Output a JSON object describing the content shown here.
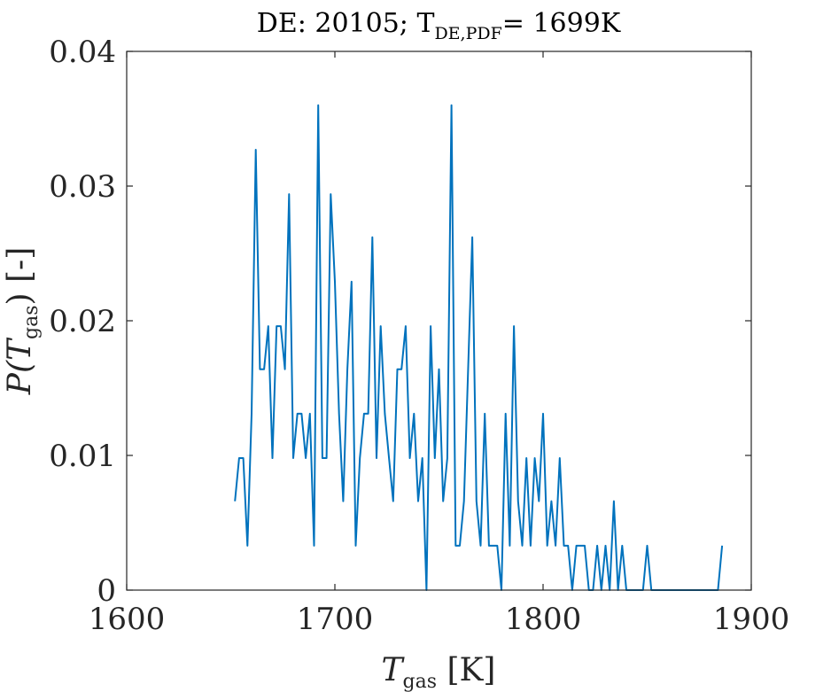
{
  "chart_data": {
    "type": "line",
    "title": "DE: 20105; T",
    "title_sub": "DE,PDF",
    "title_tail": "= 1699K",
    "xlabel": "T",
    "xlabel_sub": "gas",
    "xlabel_unit": " [K]",
    "ylabel": "P(T",
    "ylabel_sub": "gas",
    "ylabel_tail": ") [-]",
    "xlim": [
      1600,
      1900
    ],
    "ylim": [
      0,
      0.04
    ],
    "xticks": [
      1600,
      1700,
      1800,
      1900
    ],
    "xtick_labels": [
      "1600",
      "1700",
      "1800",
      "1900"
    ],
    "yticks": [
      0,
      0.01,
      0.02,
      0.03,
      0.04
    ],
    "ytick_labels": [
      "0",
      "0.01",
      "0.02",
      "0.03",
      "0.04"
    ],
    "grid": false,
    "series": [
      {
        "color": "#0072BD",
        "x": [
          1652,
          1654,
          1656,
          1658,
          1660,
          1662,
          1664,
          1666,
          1668,
          1670,
          1672,
          1674,
          1676,
          1678,
          1680,
          1682,
          1684,
          1686,
          1688,
          1690,
          1692,
          1694,
          1696,
          1698,
          1700,
          1702,
          1704,
          1706,
          1708,
          1710,
          1712,
          1714,
          1716,
          1718,
          1720,
          1722,
          1724,
          1726,
          1728,
          1730,
          1732,
          1734,
          1736,
          1738,
          1740,
          1742,
          1744,
          1746,
          1748,
          1750,
          1752,
          1754,
          1756,
          1758,
          1760,
          1762,
          1764,
          1766,
          1768,
          1770,
          1772,
          1774,
          1776,
          1778,
          1780,
          1782,
          1784,
          1786,
          1788,
          1790,
          1792,
          1794,
          1796,
          1798,
          1800,
          1802,
          1804,
          1806,
          1808,
          1810,
          1812,
          1814,
          1816,
          1818,
          1820,
          1822,
          1824,
          1826,
          1828,
          1830,
          1832,
          1834,
          1836,
          1838,
          1840,
          1842,
          1844,
          1846,
          1848,
          1850,
          1852,
          1854,
          1856,
          1858,
          1860,
          1862,
          1864,
          1866,
          1868,
          1870,
          1872,
          1874,
          1876,
          1878,
          1880,
          1882,
          1884,
          1886
        ],
        "y": [
          0.0066,
          0.0098,
          0.0098,
          0.0033,
          0.0131,
          0.0327,
          0.0164,
          0.0164,
          0.0196,
          0.0098,
          0.0196,
          0.0196,
          0.0164,
          0.0294,
          0.0098,
          0.0131,
          0.0131,
          0.0098,
          0.0131,
          0.0033,
          0.036,
          0.0098,
          0.0098,
          0.0294,
          0.0229,
          0.0131,
          0.0066,
          0.0164,
          0.0229,
          0.0033,
          0.0098,
          0.0131,
          0.0131,
          0.0262,
          0.0098,
          0.0196,
          0.0131,
          0.0098,
          0.0066,
          0.0164,
          0.0164,
          0.0196,
          0.0098,
          0.0131,
          0.0066,
          0.0098,
          0.0,
          0.0196,
          0.0098,
          0.0164,
          0.0066,
          0.0098,
          0.036,
          0.0033,
          0.0033,
          0.0066,
          0.0164,
          0.0262,
          0.0066,
          0.0033,
          0.0131,
          0.0033,
          0.0033,
          0.0033,
          0.0,
          0.0131,
          0.0033,
          0.0196,
          0.0066,
          0.0033,
          0.0098,
          0.0033,
          0.0098,
          0.0066,
          0.0131,
          0.0033,
          0.0066,
          0.0033,
          0.0098,
          0.0033,
          0.0033,
          0.0,
          0.0033,
          0.0033,
          0.0033,
          0.0,
          0.0,
          0.0033,
          0.0,
          0.0033,
          0.0,
          0.0066,
          0.0,
          0.0033,
          0.0,
          0.0,
          0.0,
          0.0,
          0.0,
          0.0033,
          0.0,
          0.0,
          0.0,
          0.0,
          0.0,
          0.0,
          0.0,
          0.0,
          0.0,
          0.0,
          0.0,
          0.0,
          0.0,
          0.0,
          0.0,
          0.0,
          0.0,
          0.0033
        ]
      }
    ]
  }
}
